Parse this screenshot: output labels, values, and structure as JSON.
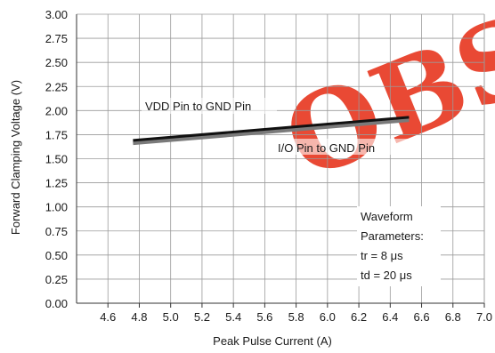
{
  "chart_data": {
    "type": "line",
    "title": "",
    "xlabel": "Peak Pulse Current (A)",
    "ylabel": "Forward Clamping Voltage (V)",
    "xlim": [
      4.4,
      7.0
    ],
    "ylim": [
      0.0,
      3.0
    ],
    "x_ticks": [
      "4.6",
      "4.8",
      "5.0",
      "5.2",
      "5.4",
      "5.6",
      "5.8",
      "6.0",
      "6.2",
      "6.4",
      "6.6",
      "6.8",
      "7.0"
    ],
    "x_tick_values": [
      4.6,
      4.8,
      5.0,
      5.2,
      5.4,
      5.6,
      5.8,
      6.0,
      6.2,
      6.4,
      6.6,
      6.8,
      7.0
    ],
    "y_ticks": [
      "0.00",
      "0.25",
      "0.50",
      "0.75",
      "1.00",
      "1.25",
      "1.50",
      "1.75",
      "2.00",
      "2.25",
      "2.50",
      "2.75",
      "3.00"
    ],
    "y_tick_values": [
      0.0,
      0.25,
      0.5,
      0.75,
      1.0,
      1.25,
      1.5,
      1.75,
      2.0,
      2.25,
      2.5,
      2.75,
      3.0
    ],
    "grid": true,
    "series": [
      {
        "name": "VDD Pin to GND Pin",
        "x": [
          4.76,
          6.52
        ],
        "y": [
          1.69,
          1.93
        ],
        "color": "#111111"
      },
      {
        "name": "I/O Pin to GND Pin",
        "x": [
          4.76,
          6.52
        ],
        "y": [
          1.66,
          1.9
        ],
        "color": "#7a7a7a"
      }
    ],
    "annotations": {
      "waveform_lines": [
        "Waveform",
        "Parameters:",
        "tr = 8 μs",
        "td = 20 μs"
      ]
    }
  },
  "watermark": {
    "text": "OBS",
    "color": "#e8402a"
  }
}
